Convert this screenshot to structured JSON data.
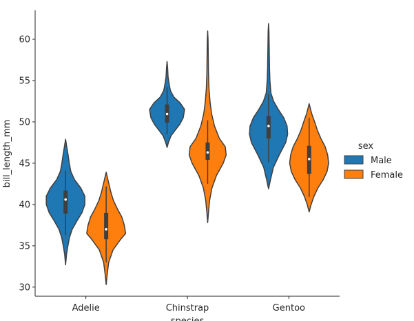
{
  "chart_data": {
    "type": "violin",
    "title": "",
    "xlabel": "species",
    "ylabel": "bill_length_mm",
    "categories": [
      "Adelie",
      "Chinstrap",
      "Gentoo"
    ],
    "ylim": [
      28.9,
      63.5
    ],
    "yticks": [
      30,
      35,
      40,
      45,
      50,
      55,
      60
    ],
    "ytick_labels": [
      "30",
      "35",
      "40",
      "45",
      "50",
      "55",
      "60"
    ],
    "grid": false,
    "legend": {
      "title": "sex",
      "placement": "right",
      "entries": [
        {
          "label": "Male",
          "color": "#1f77b4"
        },
        {
          "label": "Female",
          "color": "#ff7f0e"
        }
      ]
    },
    "series": [
      {
        "name": "Male",
        "color": "#1f77b4",
        "values": [
          {
            "category": "Adelie",
            "min": 32.7,
            "max": 47.9,
            "q1": 38.9,
            "median": 40.6,
            "q3": 41.7,
            "whisker_low": 36.3,
            "whisker_high": 44.1,
            "profile": [
              [
                32.7,
                0
              ],
              [
                34,
                0.05
              ],
              [
                35,
                0.12
              ],
              [
                36,
                0.2
              ],
              [
                37,
                0.34
              ],
              [
                38,
                0.58
              ],
              [
                39,
                0.84
              ],
              [
                40,
                0.99
              ],
              [
                41,
                0.99
              ],
              [
                42,
                0.78
              ],
              [
                43,
                0.46
              ],
              [
                44,
                0.27
              ],
              [
                45,
                0.19
              ],
              [
                46,
                0.13
              ],
              [
                47,
                0.06
              ],
              [
                47.9,
                0
              ]
            ]
          },
          {
            "category": "Chinstrap",
            "min": 46.9,
            "max": 57.3,
            "q1": 49.9,
            "median": 50.95,
            "q3": 52.1,
            "whisker_low": 48.5,
            "whisker_high": 54.2,
            "profile": [
              [
                46.9,
                0
              ],
              [
                47.5,
                0.07
              ],
              [
                48.3,
                0.2
              ],
              [
                49,
                0.42
              ],
              [
                49.7,
                0.65
              ],
              [
                50.5,
                0.83
              ],
              [
                51.5,
                0.9
              ],
              [
                52.3,
                0.67
              ],
              [
                53,
                0.35
              ],
              [
                53.8,
                0.17
              ],
              [
                54.7,
                0.1
              ],
              [
                55.5,
                0.05
              ],
              [
                56.5,
                0.03
              ],
              [
                57.3,
                0
              ]
            ]
          },
          {
            "category": "Gentoo",
            "min": 41.9,
            "max": 61.9,
            "q1": 48.0,
            "median": 49.5,
            "q3": 50.7,
            "whisker_low": 45.1,
            "whisker_high": 53.4,
            "profile": [
              [
                41.9,
                0
              ],
              [
                43,
                0.1
              ],
              [
                44.5,
                0.25
              ],
              [
                46,
                0.55
              ],
              [
                47.5,
                0.88
              ],
              [
                48.5,
                0.98
              ],
              [
                49.5,
                0.95
              ],
              [
                50.5,
                0.78
              ],
              [
                51.5,
                0.5
              ],
              [
                52.5,
                0.26
              ],
              [
                53.5,
                0.12
              ],
              [
                55,
                0.07
              ],
              [
                56.5,
                0.05
              ],
              [
                58,
                0.04
              ],
              [
                59.5,
                0.03
              ],
              [
                61,
                0.02
              ],
              [
                61.9,
                0
              ]
            ]
          }
        ]
      },
      {
        "name": "Female",
        "color": "#ff7f0e",
        "values": [
          {
            "category": "Adelie",
            "min": 30.3,
            "max": 43.9,
            "q1": 35.8,
            "median": 37.0,
            "q3": 39.0,
            "whisker_low": 33.0,
            "whisker_high": 42.2,
            "profile": [
              [
                30.3,
                0
              ],
              [
                31.5,
                0.05
              ],
              [
                33,
                0.13
              ],
              [
                34.5,
                0.35
              ],
              [
                35.8,
                0.75
              ],
              [
                36.5,
                1.0
              ],
              [
                37.5,
                0.93
              ],
              [
                38.5,
                0.8
              ],
              [
                39.5,
                0.57
              ],
              [
                40.5,
                0.37
              ],
              [
                41.5,
                0.24
              ],
              [
                42.5,
                0.14
              ],
              [
                43.3,
                0.06
              ],
              [
                43.9,
                0
              ]
            ]
          },
          {
            "category": "Chinstrap",
            "min": 37.8,
            "max": 61.0,
            "q1": 45.4,
            "median": 46.3,
            "q3": 47.5,
            "whisker_low": 42.5,
            "whisker_high": 50.2,
            "profile": [
              [
                37.8,
                0
              ],
              [
                39,
                0.04
              ],
              [
                40.5,
                0.1
              ],
              [
                42,
                0.22
              ],
              [
                43.5,
                0.45
              ],
              [
                45,
                0.8
              ],
              [
                46,
                0.95
              ],
              [
                47,
                0.9
              ],
              [
                48,
                0.6
              ],
              [
                49.5,
                0.35
              ],
              [
                51,
                0.2
              ],
              [
                52.5,
                0.12
              ],
              [
                54,
                0.07
              ],
              [
                56,
                0.04
              ],
              [
                58,
                0.03
              ],
              [
                60,
                0.02
              ],
              [
                61,
                0
              ]
            ]
          },
          {
            "category": "Gentoo",
            "min": 39.1,
            "max": 52.2,
            "q1": 43.7,
            "median": 45.5,
            "q3": 47.1,
            "whisker_low": 40.9,
            "whisker_high": 50.5,
            "profile": [
              [
                39.1,
                0
              ],
              [
                40,
                0.1
              ],
              [
                41,
                0.25
              ],
              [
                42,
                0.45
              ],
              [
                43,
                0.72
              ],
              [
                44,
                0.92
              ],
              [
                45,
                1.0
              ],
              [
                46,
                0.95
              ],
              [
                47,
                0.82
              ],
              [
                48,
                0.6
              ],
              [
                49,
                0.42
              ],
              [
                50,
                0.28
              ],
              [
                51,
                0.13
              ],
              [
                52.2,
                0
              ]
            ]
          }
        ]
      }
    ]
  }
}
